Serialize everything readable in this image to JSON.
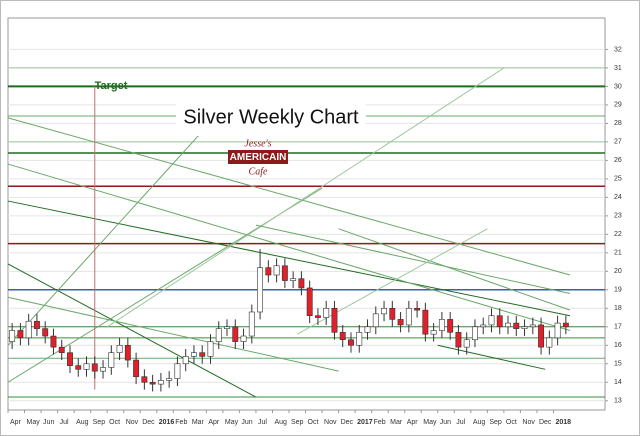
{
  "chart_data": {
    "type": "candlestick",
    "title": "Silver Weekly Chart",
    "annotation": "Target",
    "logo": {
      "top": "Jesse's",
      "middle": "AMERICAIN",
      "bottom": "Cafe"
    },
    "xlabels": [
      "Apr",
      "May",
      "Jun",
      "Jul",
      "Aug",
      "Sep",
      "Oct",
      "Nov",
      "Dec",
      "2016",
      "Feb",
      "Mar",
      "Apr",
      "May",
      "Jun",
      "Jul",
      "Aug",
      "Sep",
      "Oct",
      "Nov",
      "Dec",
      "2017",
      "Feb",
      "Mar",
      "Apr",
      "May",
      "Jun",
      "Jul",
      "Aug",
      "Sep",
      "Oct",
      "Nov",
      "Dec",
      "2018"
    ],
    "open": [
      16.2,
      16.8,
      16.4,
      17.3,
      16.9,
      16.5,
      15.9,
      15.6,
      14.9,
      14.7,
      15.0,
      14.6,
      14.8,
      15.6,
      16.0,
      15.2,
      14.3,
      14.0,
      13.9,
      14.1,
      14.2,
      15.0,
      15.4,
      15.6,
      15.4,
      16.2,
      16.9,
      17.0,
      16.2,
      16.5,
      17.8,
      20.2,
      19.8,
      20.3,
      19.5,
      19.6,
      19.1,
      17.6,
      17.5,
      18.0,
      16.7,
      16.3,
      16.0,
      16.7,
      17.0,
      17.7,
      18.0,
      17.4,
      17.1,
      18.0,
      17.9,
      16.6,
      16.8,
      17.4,
      16.7,
      15.9,
      16.3,
      17.0,
      17.1,
      17.6,
      17.0,
      17.2,
      16.9,
      17.0,
      17.1,
      15.9,
      16.4,
      17.2
    ],
    "high": [
      17.2,
      17.2,
      17.7,
      17.7,
      17.3,
      16.9,
      16.3,
      16.0,
      15.3,
      15.4,
      15.4,
      15.2,
      16.0,
      16.4,
      16.4,
      15.6,
      14.7,
      14.4,
      14.5,
      14.6,
      15.4,
      15.8,
      16.0,
      16.0,
      16.6,
      17.3,
      17.4,
      17.4,
      16.9,
      18.2,
      21.2,
      20.6,
      20.7,
      20.7,
      20.0,
      20.0,
      19.5,
      18.0,
      18.4,
      18.4,
      17.1,
      16.7,
      17.1,
      17.4,
      18.1,
      18.4,
      18.4,
      17.8,
      18.4,
      18.4,
      18.3,
      17.2,
      17.8,
      17.8,
      17.1,
      16.7,
      17.4,
      17.5,
      18.0,
      18.0,
      17.6,
      17.6,
      17.4,
      17.5,
      17.5,
      16.8,
      17.6,
      17.6
    ],
    "low": [
      15.8,
      16.0,
      16.0,
      16.5,
      16.1,
      15.5,
      15.2,
      14.5,
      14.3,
      14.3,
      14.2,
      14.2,
      14.4,
      15.2,
      14.8,
      13.9,
      13.6,
      13.5,
      13.5,
      13.7,
      13.8,
      14.6,
      15.0,
      15.0,
      15.0,
      15.8,
      16.5,
      15.8,
      15.8,
      16.1,
      17.4,
      19.4,
      19.4,
      19.1,
      19.1,
      18.7,
      17.2,
      17.1,
      17.1,
      16.3,
      15.9,
      15.6,
      15.6,
      16.3,
      16.6,
      17.3,
      17.0,
      16.7,
      16.7,
      17.5,
      16.2,
      16.2,
      16.4,
      16.3,
      15.5,
      15.5,
      15.9,
      16.6,
      16.7,
      16.6,
      16.6,
      16.5,
      16.5,
      16.6,
      15.5,
      15.5,
      16.0,
      16.6
    ],
    "close": [
      16.8,
      16.4,
      17.3,
      16.9,
      16.5,
      15.9,
      15.6,
      14.9,
      14.7,
      15.0,
      14.6,
      14.8,
      15.6,
      16.0,
      15.2,
      14.3,
      14.0,
      13.9,
      14.1,
      14.2,
      15.0,
      15.4,
      15.6,
      15.4,
      16.2,
      16.9,
      17.0,
      16.2,
      16.5,
      17.8,
      20.2,
      19.8,
      20.3,
      19.5,
      19.6,
      19.1,
      17.6,
      17.5,
      18.0,
      16.7,
      16.3,
      16.0,
      16.7,
      17.0,
      17.7,
      18.0,
      17.4,
      17.1,
      18.0,
      17.9,
      16.6,
      16.8,
      17.4,
      16.7,
      15.9,
      16.3,
      17.0,
      17.1,
      17.6,
      17.0,
      17.2,
      16.9,
      17.0,
      17.1,
      15.9,
      16.4,
      17.2,
      17.0
    ],
    "up_color": "#ffffff",
    "down_color": "#e0202a",
    "ylim": [
      12.5,
      33.7
    ],
    "yticks": [
      13,
      14,
      15,
      16,
      17,
      18,
      19,
      20,
      21,
      22,
      23,
      24,
      25,
      26,
      27,
      28,
      29,
      30,
      31,
      32
    ],
    "grid": true,
    "levels": [
      {
        "value": 30.0,
        "color": "#1f6b1f",
        "width": 2
      },
      {
        "value": 31.0,
        "color": "#9cc89c",
        "width": 1
      },
      {
        "value": 28.4,
        "color": "#6aa86a",
        "width": 1
      },
      {
        "value": 27.0,
        "color": "#9cc89c",
        "width": 1
      },
      {
        "value": 26.4,
        "color": "#1f6b1f",
        "width": 1.5
      },
      {
        "value": 24.6,
        "color": "#8b1a1a",
        "width": 1.5
      },
      {
        "value": 21.5,
        "color": "#8b1a1a",
        "width": 1.5
      },
      {
        "value": 19.0,
        "color": "#3a5fa8",
        "width": 1.5
      },
      {
        "value": 17.0,
        "color": "#3c8c3c",
        "width": 1
      },
      {
        "value": 16.4,
        "color": "#3c8c3c",
        "width": 1
      },
      {
        "value": 15.3,
        "color": "#6aa86a",
        "width": 1
      },
      {
        "value": 13.2,
        "color": "#3c8c3c",
        "width": 1
      }
    ],
    "trendlines": [
      {
        "from": [
          0,
          23.8
        ],
        "to": [
          68,
          17.6
        ],
        "color": "#1f6b1f"
      },
      {
        "from": [
          0,
          25.8
        ],
        "to": [
          68,
          16.8
        ],
        "color": "#6aa86a"
      },
      {
        "from": [
          0,
          28.3
        ],
        "to": [
          68,
          19.8
        ],
        "color": "#6aa86a"
      },
      {
        "from": [
          0,
          20.4
        ],
        "to": [
          30,
          13.2
        ],
        "color": "#1f6b1f"
      },
      {
        "from": [
          0,
          18.6
        ],
        "to": [
          40,
          14.6
        ],
        "color": "#6aa86a"
      },
      {
        "from": [
          0,
          14.0
        ],
        "to": [
          38,
          24.5
        ],
        "color": "#6aa86a"
      },
      {
        "from": [
          0,
          16.0
        ],
        "to": [
          25,
          28.3
        ],
        "color": "#6aa86a"
      },
      {
        "from": [
          12,
          17.0
        ],
        "to": [
          60,
          31.0
        ],
        "color": "#9cc89c"
      },
      {
        "from": [
          30,
          22.5
        ],
        "to": [
          68,
          18.8
        ],
        "color": "#6aa86a"
      },
      {
        "from": [
          40,
          22.3
        ],
        "to": [
          68,
          17.9
        ],
        "color": "#6aa86a"
      },
      {
        "from": [
          35,
          16.6
        ],
        "to": [
          58,
          22.3
        ],
        "color": "#9cc89c"
      },
      {
        "from": [
          52,
          16.0
        ],
        "to": [
          65,
          14.7
        ],
        "color": "#1f6b1f"
      }
    ],
    "target_line": {
      "index": 10.5,
      "from": 13.6,
      "to": 30.0,
      "color": "#c07070"
    }
  }
}
